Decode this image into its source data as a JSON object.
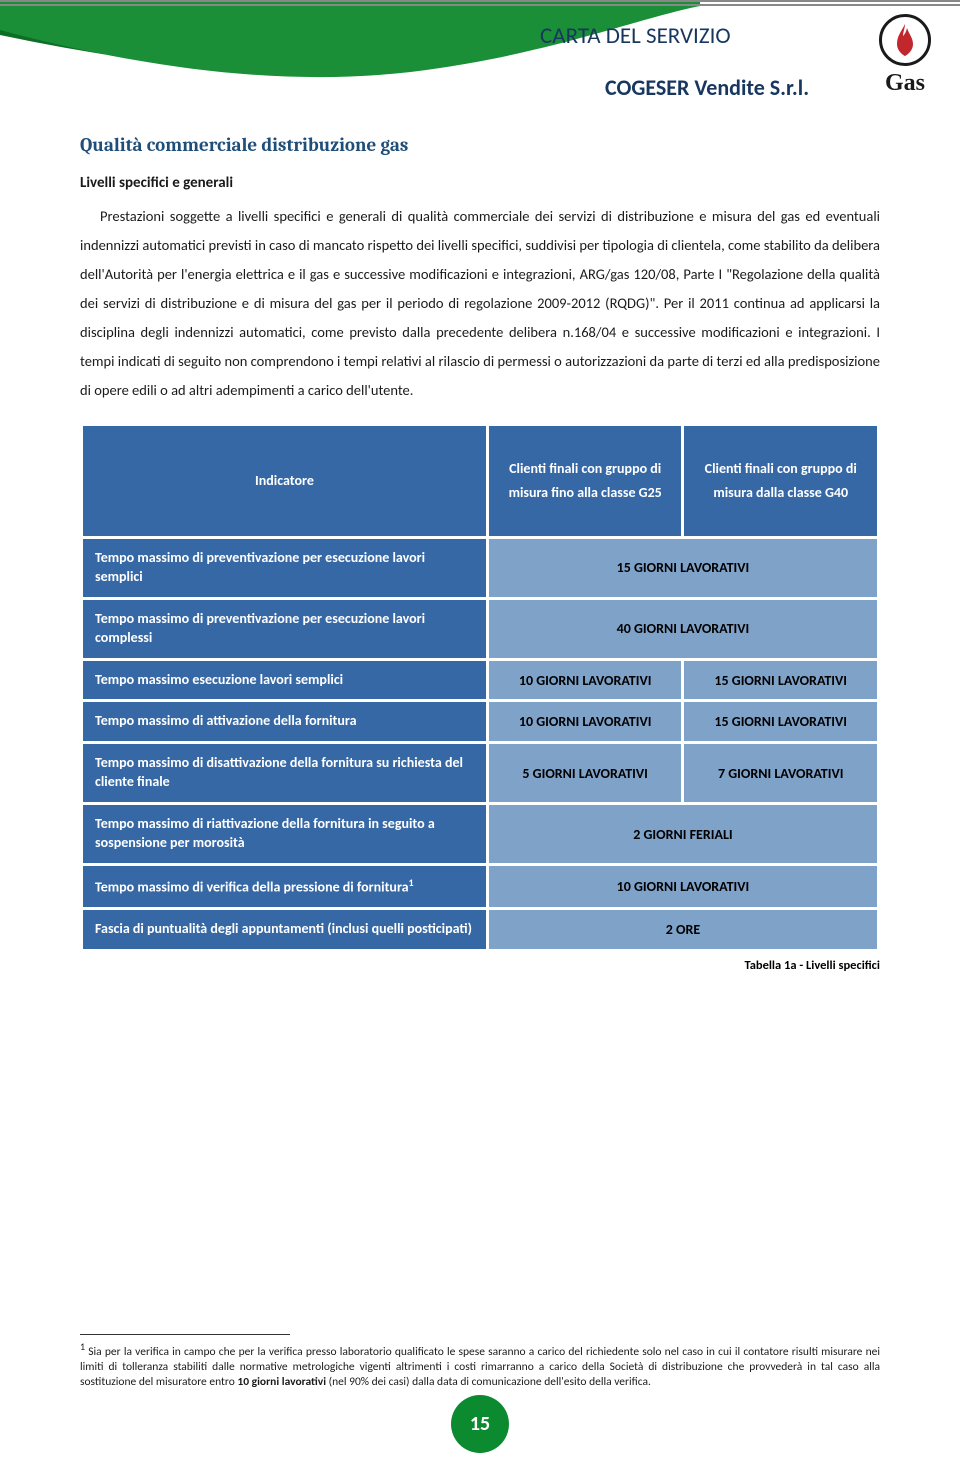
{
  "header": {
    "title": "CARTA DEL SERVIZIO",
    "subtitle": "COGESER Vendite S.r.l.",
    "logo_label": "Gas",
    "wave_green": "#1a8f37",
    "wave_green_dark": "#0e6f24",
    "header_text_color": "#18375f"
  },
  "section": {
    "title": "Qualità commerciale distribuzione gas",
    "sub": "Livelli specifici e generali",
    "body": "Prestazioni soggette a livelli specifici e generali di qualità commerciale dei servizi di distribuzione e misura del gas ed eventuali indennizzi automatici previsti in caso di mancato rispetto dei livelli specifici, suddivisi per tipologia di clientela, come stabilito da delibera dell'Autorità per l'energia elettrica e il gas e successive modificazioni e integrazioni, ARG/gas 120/08, Parte I \"Regolazione della qualità dei servizi di distribuzione e di misura del gas per il periodo di regolazione 2009-2012 (RQDG)\". Per il 2011 continua ad applicarsi la disciplina degli indennizzi automatici, come previsto dalla precedente delibera n.168/04 e successive modificazioni e integrazioni. I tempi indicati di seguito non comprendono i tempi relativi al rilascio di permessi o autorizzazioni da parte di terzi ed alla predisposizione di opere edili o ad altri adempimenti a carico dell'utente."
  },
  "table": {
    "header_bg": "#3768a6",
    "value_bg": "#7fa2c9",
    "col0": "Indicatore",
    "col1": "Clienti finali con gruppo di misura fino alla classe G25",
    "col2": "Clienti finali con gruppo di misura dalla classe G40",
    "rows": [
      {
        "label": "Tempo massimo di preventivazione per esecuzione lavori semplici",
        "span": "15 GIORNI LAVORATIVI"
      },
      {
        "label": "Tempo massimo di preventivazione per esecuzione lavori complessi",
        "span": "40 GIORNI LAVORATIVI"
      },
      {
        "label": "Tempo massimo esecuzione lavori semplici",
        "v1": "10 GIORNI LAVORATIVI",
        "v2": "15 GIORNI LAVORATIVI"
      },
      {
        "label": "Tempo massimo di attivazione della fornitura",
        "v1": "10 GIORNI LAVORATIVI",
        "v2": "15 GIORNI LAVORATIVI"
      },
      {
        "label": "Tempo massimo di disattivazione della fornitura su richiesta del cliente finale",
        "v1": "5 GIORNI LAVORATIVI",
        "v2": "7 GIORNI LAVORATIVI"
      },
      {
        "label": "Tempo massimo di riattivazione della fornitura in seguito a sospensione per morosità",
        "span": "2 GIORNI FERIALI"
      },
      {
        "label": "Tempo massimo di verifica della pressione di fornitura",
        "sup": "1",
        "span": "10 GIORNI LAVORATIVI"
      },
      {
        "label": "Fascia di puntualità degli appuntamenti (inclusi quelli posticipati)",
        "span": "2 ORE"
      }
    ],
    "caption": "Tabella 1a - Livelli specifici"
  },
  "footnote": {
    "marker": "1",
    "text": " Sia per la verifica in campo che per la verifica presso laboratorio qualificato le spese saranno a carico del richiedente solo nel caso in cui il contatore risulti misurare nei limiti di tolleranza stabiliti dalle normative metrologiche vigenti altrimenti i costi rimarranno a carico della Società di distribuzione che provvederà in tal caso alla sostituzione del misuratore entro ",
    "bold": "10 giorni lavorativi",
    "tail": " (nel 90% dei casi) dalla data di comunicazione dell'esito della verifica."
  },
  "page": "15"
}
